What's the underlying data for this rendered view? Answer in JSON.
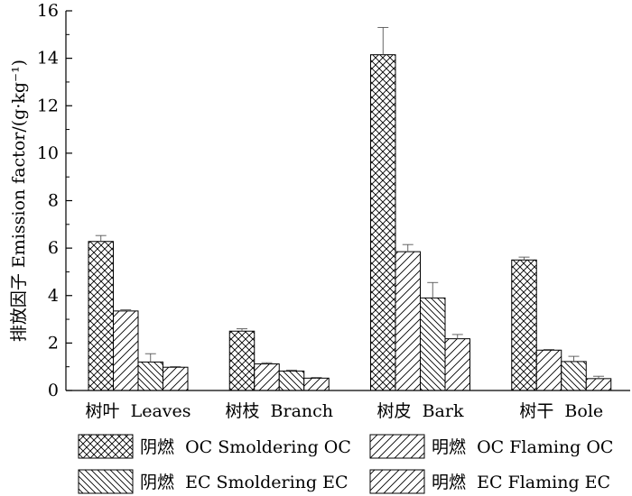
{
  "chart_data": {
    "type": "bar",
    "ylabel": "排放因子 Emission factor/(g·kg⁻¹)",
    "xlabel": "",
    "ylim": [
      0,
      16
    ],
    "yticks": [
      0,
      2,
      4,
      6,
      8,
      10,
      12,
      14,
      16
    ],
    "categories": [
      "树叶  Leaves",
      "树枝  Branch",
      "树皮  Bark",
      "树干  Bole"
    ],
    "series": [
      {
        "name": "阴燃  OC Smoldering OC",
        "pattern": "crosshatch",
        "values": [
          6.28,
          2.5,
          14.15,
          5.5
        ],
        "errors": [
          0.25,
          0.1,
          1.15,
          0.12
        ]
      },
      {
        "name": "明燃  OC Flaming OC",
        "pattern": "forward-diagonal",
        "values": [
          3.35,
          1.12,
          5.85,
          1.7
        ],
        "errors": [
          0.05,
          0.05,
          0.3,
          0.03
        ]
      },
      {
        "name": "阴燃  EC Smoldering EC",
        "pattern": "back-diagonal",
        "values": [
          1.2,
          0.82,
          3.9,
          1.22
        ],
        "errors": [
          0.35,
          0.04,
          0.65,
          0.22
        ]
      },
      {
        "name": "明燃  EC Flaming EC",
        "pattern": "forward-diagonal",
        "values": [
          0.98,
          0.52,
          2.18,
          0.5
        ],
        "errors": [
          0.03,
          0.03,
          0.18,
          0.1
        ]
      }
    ],
    "legend_position": "bottom",
    "grid": false
  }
}
